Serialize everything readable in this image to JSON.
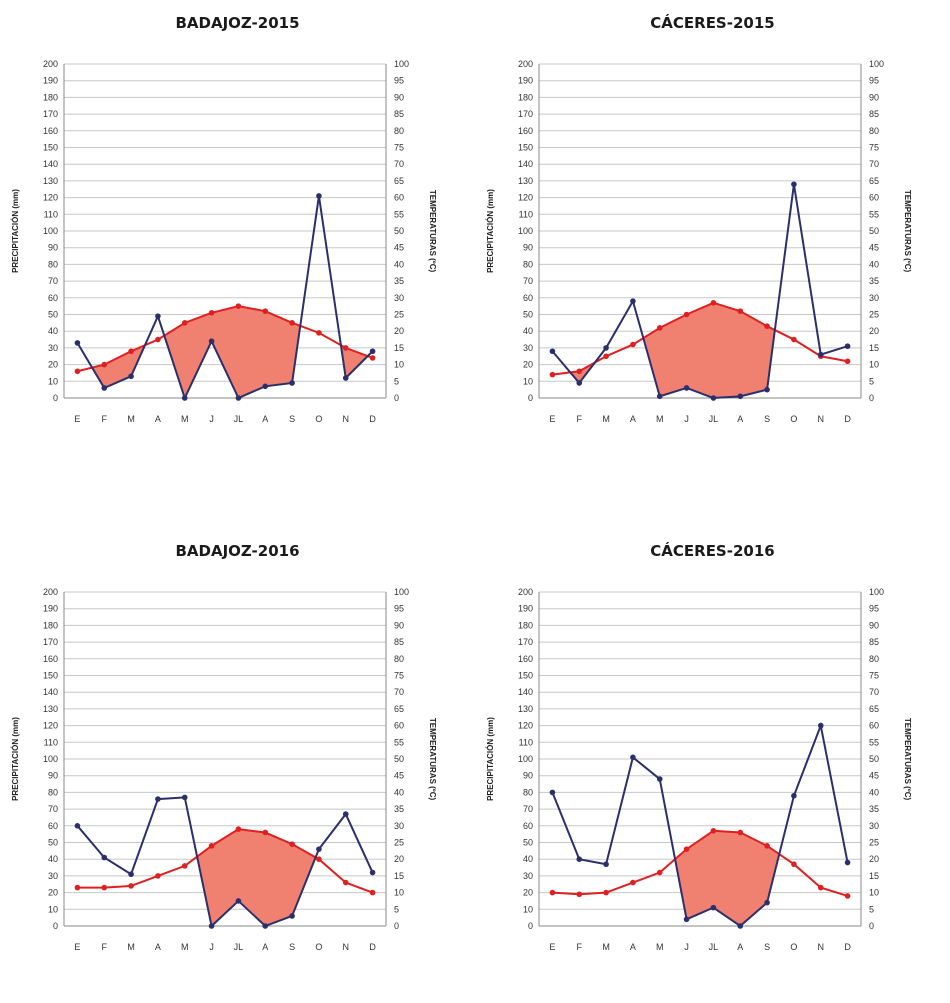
{
  "chart_data": [
    {
      "type": "line",
      "title": "BADAJOZ-2015",
      "categories": [
        "E",
        "F",
        "M",
        "A",
        "M",
        "J",
        "JL",
        "A",
        "S",
        "O",
        "N",
        "D"
      ],
      "ylabel": "PRECIPITACIÓN (mm)",
      "y2label": "TEMPERATURAS (ºC)",
      "ylim": [
        0,
        200
      ],
      "y2lim": [
        0,
        100
      ],
      "y_ticks": [
        "0",
        "10",
        "20",
        "30",
        "40",
        "50",
        "60",
        "70",
        "80",
        "90",
        "100",
        "110",
        "120",
        "130",
        "140",
        "150",
        "160",
        "170",
        "180",
        "190",
        "200"
      ],
      "y2_ticks": [
        "0",
        "5",
        "10",
        "15",
        "20",
        "25",
        "30",
        "35",
        "40",
        "45",
        "50",
        "55",
        "60",
        "65",
        "70",
        "75",
        "80",
        "85",
        "90",
        "95",
        "100"
      ],
      "series": [
        {
          "axis": "left",
          "color": "#2b2f6b",
          "values": [
            33,
            6,
            13,
            49,
            0,
            34,
            0,
            7,
            9,
            121,
            12,
            28
          ]
        },
        {
          "axis": "right",
          "color": "#e02020",
          "values": [
            8,
            10,
            14,
            17.5,
            22.5,
            25.5,
            27.5,
            26,
            22.5,
            19.5,
            15,
            12
          ]
        }
      ],
      "fill_color": "#f08070"
    },
    {
      "type": "line",
      "title": "CÁCERES-2015",
      "categories": [
        "E",
        "F",
        "M",
        "A",
        "M",
        "J",
        "JL",
        "A",
        "S",
        "O",
        "N",
        "D"
      ],
      "ylabel": "PRECIPITACIÓN (mm)",
      "y2label": "TEMPERATURAS (ºC)",
      "ylim": [
        0,
        200
      ],
      "y2lim": [
        0,
        100
      ],
      "y_ticks": [
        "0",
        "10",
        "20",
        "30",
        "40",
        "50",
        "60",
        "70",
        "80",
        "90",
        "100",
        "110",
        "120",
        "130",
        "140",
        "150",
        "160",
        "170",
        "180",
        "190",
        "200"
      ],
      "y2_ticks": [
        "0",
        "5",
        "10",
        "15",
        "20",
        "25",
        "30",
        "35",
        "40",
        "45",
        "50",
        "55",
        "60",
        "65",
        "70",
        "75",
        "80",
        "85",
        "90",
        "95",
        "100"
      ],
      "series": [
        {
          "axis": "left",
          "color": "#2b2f6b",
          "values": [
            28,
            9,
            30,
            58,
            1,
            6,
            0,
            1,
            5,
            128,
            26,
            31
          ]
        },
        {
          "axis": "right",
          "color": "#e02020",
          "values": [
            7,
            8,
            12.5,
            16,
            21,
            25,
            28.5,
            26,
            21.5,
            17.5,
            12.5,
            11
          ]
        }
      ],
      "fill_color": "#f08070"
    },
    {
      "type": "line",
      "title": "BADAJOZ-2016",
      "categories": [
        "E",
        "F",
        "M",
        "A",
        "M",
        "J",
        "JL",
        "A",
        "S",
        "O",
        "N",
        "D"
      ],
      "ylabel": "PRECIPITACIÓN (mm)",
      "y2label": "TEMPERATURAS (ºC)",
      "ylim": [
        0,
        200
      ],
      "y2lim": [
        0,
        100
      ],
      "y_ticks": [
        "0",
        "10",
        "20",
        "30",
        "40",
        "50",
        "60",
        "70",
        "80",
        "90",
        "100",
        "110",
        "120",
        "130",
        "140",
        "150",
        "160",
        "170",
        "180",
        "190",
        "200"
      ],
      "y2_ticks": [
        "0",
        "5",
        "10",
        "15",
        "20",
        "25",
        "30",
        "35",
        "40",
        "45",
        "50",
        "55",
        "60",
        "65",
        "70",
        "75",
        "80",
        "85",
        "90",
        "95",
        "100"
      ],
      "series": [
        {
          "axis": "left",
          "color": "#2b2f6b",
          "values": [
            60,
            41,
            31,
            76,
            77,
            0,
            15,
            0,
            6,
            46,
            67,
            32
          ]
        },
        {
          "axis": "right",
          "color": "#e02020",
          "values": [
            11.5,
            11.5,
            12,
            15,
            18,
            24,
            29,
            28,
            24.5,
            20,
            13,
            10
          ]
        }
      ],
      "fill_color": "#f08070"
    },
    {
      "type": "line",
      "title": "CÁCERES-2016",
      "categories": [
        "E",
        "F",
        "M",
        "A",
        "M",
        "J",
        "JL",
        "A",
        "S",
        "O",
        "N",
        "D"
      ],
      "ylabel": "PRECIPITACIÓN (mm)",
      "y2label": "TEMPERATURAS (ºC)",
      "ylim": [
        0,
        200
      ],
      "y2lim": [
        0,
        100
      ],
      "y_ticks": [
        "0",
        "10",
        "20",
        "30",
        "40",
        "50",
        "60",
        "70",
        "80",
        "90",
        "100",
        "110",
        "120",
        "130",
        "140",
        "150",
        "160",
        "170",
        "180",
        "190",
        "200"
      ],
      "y2_ticks": [
        "0",
        "5",
        "10",
        "15",
        "20",
        "25",
        "30",
        "35",
        "40",
        "45",
        "50",
        "55",
        "60",
        "65",
        "70",
        "75",
        "80",
        "85",
        "90",
        "95",
        "100"
      ],
      "series": [
        {
          "axis": "left",
          "color": "#2b2f6b",
          "values": [
            80,
            40,
            37,
            101,
            88,
            4,
            11,
            0,
            14,
            78,
            120,
            38
          ]
        },
        {
          "axis": "right",
          "color": "#e02020",
          "values": [
            10,
            9.5,
            10,
            13,
            16,
            23,
            28.5,
            28,
            24,
            18.5,
            11.5,
            9
          ]
        }
      ],
      "fill_color": "#f08070"
    }
  ]
}
